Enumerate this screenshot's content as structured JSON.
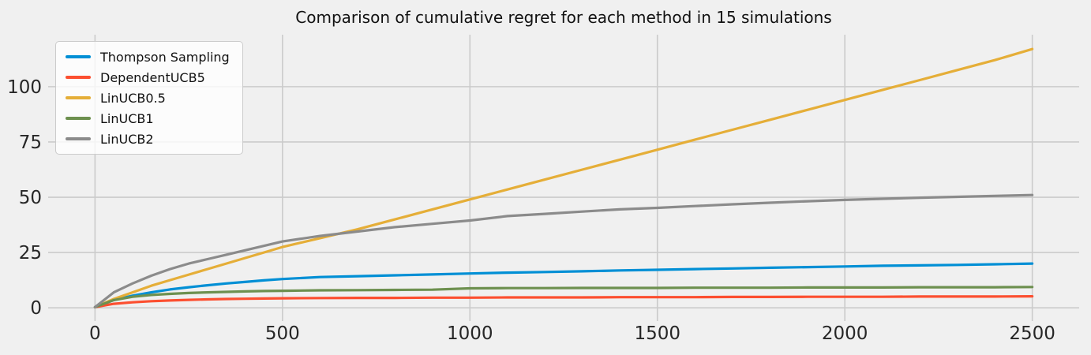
{
  "figure": {
    "title": "Comparison of cumulative regret for each method in 15 simulations"
  },
  "chart_data": {
    "type": "line",
    "title": "Comparison of cumulative regret for each method in 15 simulations",
    "xlabel": "",
    "ylabel": "",
    "x": [
      0,
      50,
      100,
      150,
      200,
      250,
      300,
      350,
      400,
      450,
      500,
      600,
      700,
      800,
      900,
      1000,
      1100,
      1200,
      1300,
      1400,
      1500,
      1600,
      1700,
      1800,
      1900,
      2000,
      2100,
      2200,
      2300,
      2400,
      2500
    ],
    "series": [
      {
        "name": "Thompson Sampling",
        "color": "#008fd5",
        "values": [
          0.3,
          3.5,
          5.5,
          7.0,
          8.3,
          9.3,
          10.2,
          11.0,
          11.7,
          12.4,
          13.0,
          13.9,
          14.3,
          14.7,
          15.1,
          15.5,
          15.9,
          16.2,
          16.5,
          16.9,
          17.2,
          17.5,
          17.8,
          18.1,
          18.4,
          18.7,
          19.0,
          19.2,
          19.4,
          19.7,
          20.0
        ]
      },
      {
        "name": "DependentUCB5",
        "color": "#fc4f30",
        "values": [
          0.3,
          1.8,
          2.5,
          3.0,
          3.3,
          3.6,
          3.8,
          4.0,
          4.1,
          4.2,
          4.3,
          4.4,
          4.5,
          4.5,
          4.6,
          4.6,
          4.7,
          4.7,
          4.7,
          4.8,
          4.8,
          4.8,
          4.9,
          4.9,
          5.0,
          5.0,
          5.0,
          5.1,
          5.1,
          5.1,
          5.2
        ]
      },
      {
        "name": "LinUCB0.5",
        "color": "#e5ae38",
        "values": [
          0.3,
          4.0,
          7.0,
          10.0,
          12.5,
          15.0,
          17.5,
          20.0,
          22.5,
          25.0,
          27.5,
          31.5,
          35.5,
          40.0,
          44.5,
          49.0,
          53.5,
          58.0,
          62.5,
          67.0,
          71.5,
          76.0,
          80.5,
          85.0,
          89.5,
          94.0,
          98.5,
          103.0,
          107.5,
          112.0,
          117.0
        ]
      },
      {
        "name": "LinUCB1",
        "color": "#6d904f",
        "values": [
          0.3,
          3.5,
          5.0,
          5.8,
          6.3,
          6.7,
          7.0,
          7.2,
          7.4,
          7.6,
          7.7,
          7.9,
          8.0,
          8.1,
          8.2,
          8.8,
          8.9,
          8.9,
          9.0,
          9.0,
          9.0,
          9.1,
          9.1,
          9.1,
          9.2,
          9.2,
          9.2,
          9.3,
          9.3,
          9.3,
          9.4
        ]
      },
      {
        "name": "LinUCB2",
        "color": "#8b8b8b",
        "values": [
          0.3,
          7.0,
          11.0,
          14.5,
          17.5,
          20.0,
          22.0,
          24.0,
          26.0,
          28.0,
          30.0,
          32.5,
          34.5,
          36.5,
          38.0,
          39.5,
          41.5,
          42.5,
          43.5,
          44.5,
          45.2,
          46.0,
          46.8,
          47.5,
          48.2,
          48.8,
          49.3,
          49.8,
          50.2,
          50.6,
          51.0
        ]
      }
    ],
    "xticks": [
      "0",
      "500",
      "1000",
      "1500",
      "2000",
      "2500"
    ],
    "xtick_values": [
      0,
      500,
      1000,
      1500,
      2000,
      2500
    ],
    "yticks": [
      "0",
      "25",
      "50",
      "75",
      "100"
    ],
    "ytick_values": [
      0,
      25,
      50,
      75,
      100
    ],
    "xlim": [
      -125,
      2625
    ],
    "ylim": [
      -6,
      123.5
    ],
    "grid": true,
    "legend_position": "upper-left",
    "style": {
      "background": "#f0f0f0",
      "grid_color": "#cbcbcb",
      "tick_text_color": "#262626",
      "title_color": "#111111",
      "line_width": 3.2,
      "grid_width": 1.6
    }
  }
}
